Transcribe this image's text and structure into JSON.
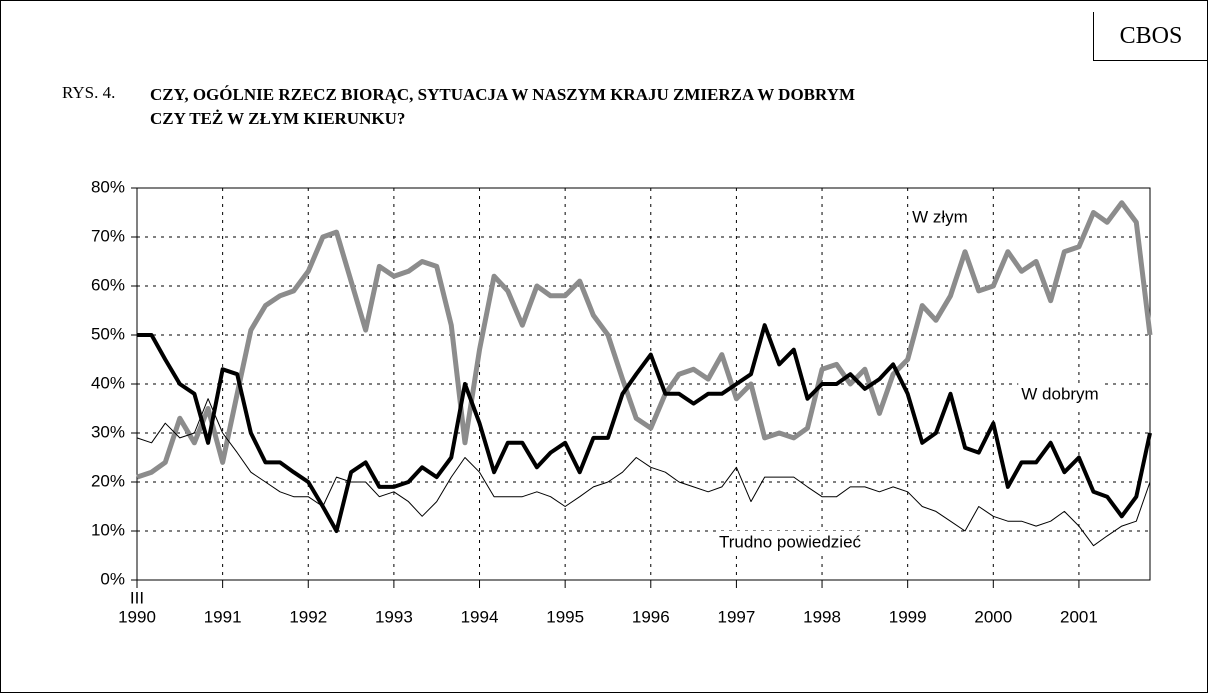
{
  "cbos": "CBOS",
  "figure_label": "RYS. 4.",
  "chart_data": {
    "type": "line",
    "title_lines": [
      "CZY, OGÓLNIE RZECZ BIORĄC, SYTUACJA W NASZYM KRAJU ZMIERZA W DOBRYM",
      "CZY TEŻ W ZŁYM KIERUNKU?"
    ],
    "x_start_label": "III",
    "x": [
      1990,
      1990.17,
      1990.33,
      1990.5,
      1990.67,
      1990.83,
      1991,
      1991.17,
      1991.33,
      1991.5,
      1991.67,
      1991.83,
      1992,
      1992.17,
      1992.33,
      1992.5,
      1992.67,
      1992.83,
      1993,
      1993.17,
      1993.33,
      1993.5,
      1993.67,
      1993.83,
      1994,
      1994.17,
      1994.33,
      1994.5,
      1994.67,
      1994.83,
      1995,
      1995.17,
      1995.33,
      1995.5,
      1995.67,
      1995.83,
      1996,
      1996.17,
      1996.33,
      1996.5,
      1996.67,
      1996.83,
      1997,
      1997.17,
      1997.33,
      1997.5,
      1997.67,
      1997.83,
      1998,
      1998.17,
      1998.33,
      1998.5,
      1998.67,
      1998.83,
      1999,
      1999.17,
      1999.33,
      1999.5,
      1999.67,
      1999.83,
      2000,
      2000.17,
      2000.33,
      2000.5,
      2000.67,
      2000.83,
      2001,
      2001.17,
      2001.33,
      2001.5,
      2001.67,
      2001.83
    ],
    "series": [
      {
        "name": "W złym",
        "color": "#8c8c8c",
        "width": 5,
        "values": [
          21,
          22,
          24,
          33,
          28,
          35,
          24,
          38,
          51,
          56,
          58,
          59,
          63,
          70,
          71,
          61,
          51,
          64,
          62,
          63,
          65,
          64,
          52,
          28,
          47,
          62,
          59,
          52,
          60,
          58,
          58,
          61,
          54,
          50,
          41,
          33,
          31,
          38,
          42,
          43,
          41,
          46,
          37,
          40,
          29,
          30,
          29,
          31,
          43,
          44,
          40,
          43,
          34,
          42,
          45,
          56,
          53,
          58,
          67,
          59,
          60,
          67,
          63,
          65,
          57,
          67,
          68,
          75,
          73,
          77,
          73,
          50
        ]
      },
      {
        "name": "W dobrym",
        "color": "#000000",
        "width": 4,
        "values": [
          50,
          50,
          45,
          40,
          38,
          28,
          43,
          42,
          30,
          24,
          24,
          22,
          20,
          15,
          10,
          22,
          24,
          19,
          19,
          20,
          23,
          21,
          25,
          40,
          32,
          22,
          28,
          28,
          23,
          26,
          28,
          22,
          29,
          29,
          38,
          42,
          46,
          38,
          38,
          36,
          38,
          38,
          40,
          42,
          52,
          44,
          47,
          37,
          40,
          40,
          42,
          39,
          41,
          44,
          38,
          28,
          30,
          38,
          27,
          26,
          32,
          19,
          24,
          24,
          28,
          22,
          25,
          18,
          17,
          13,
          17,
          30
        ]
      },
      {
        "name": "Trudno powiedzieć",
        "color": "#000000",
        "width": 1,
        "values": [
          29,
          28,
          32,
          29,
          30,
          37,
          30,
          26,
          22,
          20,
          18,
          17,
          17,
          15,
          21,
          20,
          20,
          17,
          18,
          16,
          13,
          16,
          21,
          25,
          22,
          17,
          17,
          17,
          18,
          17,
          15,
          17,
          19,
          20,
          22,
          25,
          23,
          22,
          20,
          19,
          18,
          19,
          23,
          16,
          21,
          21,
          21,
          19,
          17,
          17,
          19,
          19,
          18,
          19,
          18,
          15,
          14,
          12,
          10,
          15,
          13,
          12,
          12,
          11,
          12,
          14,
          11,
          7,
          9,
          11,
          12,
          20
        ]
      }
    ],
    "xlim": [
      1990,
      2001.83
    ],
    "xticks": [
      1990,
      1991,
      1992,
      1993,
      1994,
      1995,
      1996,
      1997,
      1998,
      1999,
      2000,
      2001
    ],
    "ylim": [
      0,
      80
    ],
    "yticks": [
      {
        "value": 0,
        "label": "0%"
      },
      {
        "value": 10,
        "label": "10%"
      },
      {
        "value": 20,
        "label": "20%"
      },
      {
        "value": 30,
        "label": "30%"
      },
      {
        "value": 40,
        "label": "40%"
      },
      {
        "value": 50,
        "label": "50%"
      },
      {
        "value": 60,
        "label": "60%"
      },
      {
        "value": 70,
        "label": "70%"
      },
      {
        "value": 80,
        "label": "80%"
      }
    ],
    "grid": true
  }
}
